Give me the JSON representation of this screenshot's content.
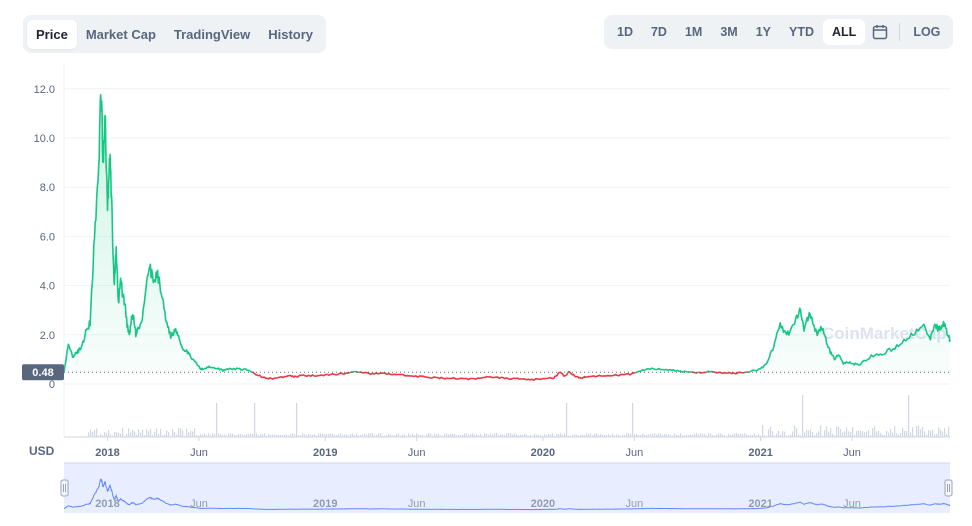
{
  "tabs": [
    {
      "label": "Price",
      "active": true
    },
    {
      "label": "Market Cap",
      "active": false
    },
    {
      "label": "TradingView",
      "active": false
    },
    {
      "label": "History",
      "active": false
    }
  ],
  "ranges": [
    {
      "label": "1D",
      "active": false
    },
    {
      "label": "7D",
      "active": false
    },
    {
      "label": "1M",
      "active": false
    },
    {
      "label": "3M",
      "active": false
    },
    {
      "label": "1Y",
      "active": false
    },
    {
      "label": "YTD",
      "active": false
    },
    {
      "label": "ALL",
      "active": true
    }
  ],
  "calendar_icon": "calendar-icon",
  "log_label": "LOG",
  "currency_label": "USD",
  "watermark": "CoinMarketCap",
  "colors": {
    "up": "#16c784",
    "down": "#ea3943",
    "navigator": "#6188ff",
    "volume": "#cfd6e4"
  },
  "chart_data": {
    "type": "line",
    "title": "",
    "xlabel": "",
    "ylabel": "",
    "yticks": [
      "12.0",
      "10.0",
      "8.0",
      "6.0",
      "4.0",
      "2.0",
      "0"
    ],
    "ylim": [
      0,
      12.5
    ],
    "grid": true,
    "reference_price": 0.48,
    "reference_label": "0.48",
    "xticks": [
      {
        "label": "2018",
        "t": 2018.0
      },
      {
        "label": "Jun",
        "t": 2018.42
      },
      {
        "label": "2019",
        "t": 2019.0
      },
      {
        "label": "Jun",
        "t": 2019.42
      },
      {
        "label": "2020",
        "t": 2020.0
      },
      {
        "label": "Jun",
        "t": 2020.42
      },
      {
        "label": "2021",
        "t": 2021.0
      },
      {
        "label": "Jun",
        "t": 2021.42
      }
    ],
    "x_range": [
      2017.8,
      2021.87
    ],
    "series": [
      {
        "x": [
          2017.8,
          2017.82,
          2017.84,
          2017.86,
          2017.88,
          2017.9,
          2017.92,
          2017.94,
          2017.96,
          2017.97,
          2017.98,
          2017.99,
          2018.0,
          2018.01,
          2018.02,
          2018.03,
          2018.04,
          2018.05,
          2018.06,
          2018.07,
          2018.08,
          2018.09,
          2018.1,
          2018.11,
          2018.12,
          2018.13,
          2018.15,
          2018.17,
          2018.19,
          2018.21,
          2018.23,
          2018.25,
          2018.27,
          2018.29,
          2018.31,
          2018.33,
          2018.35,
          2018.37,
          2018.39,
          2018.41,
          2018.43,
          2018.45,
          2018.47,
          2018.5,
          2018.53,
          2018.56,
          2018.6,
          2018.64,
          2018.68,
          2018.72,
          2018.76,
          2018.8,
          2018.84,
          2018.87,
          2018.9,
          2018.95,
          2019.0,
          2019.05,
          2019.1,
          2019.15,
          2019.2,
          2019.25,
          2019.3,
          2019.35,
          2019.4,
          2019.45,
          2019.5,
          2019.55,
          2019.6,
          2019.65,
          2019.7,
          2019.75,
          2019.8,
          2019.85,
          2019.9,
          2019.95,
          2020.0,
          2020.05,
          2020.08,
          2020.1,
          2020.12,
          2020.15,
          2020.18,
          2020.2,
          2020.25,
          2020.3,
          2020.35,
          2020.4,
          2020.45,
          2020.5,
          2020.55,
          2020.6,
          2020.65,
          2020.7,
          2020.75,
          2020.8,
          2020.85,
          2020.9,
          2020.95,
          2021.0,
          2021.03,
          2021.06,
          2021.09,
          2021.12,
          2021.15,
          2021.18,
          2021.2,
          2021.22,
          2021.24,
          2021.26,
          2021.28,
          2021.3,
          2021.32,
          2021.34,
          2021.36,
          2021.38,
          2021.4,
          2021.42,
          2021.45,
          2021.5,
          2021.55,
          2021.6,
          2021.65,
          2021.7,
          2021.75,
          2021.78,
          2021.8,
          2021.82,
          2021.84,
          2021.86,
          2021.87
        ],
        "values": [
          0.5,
          1.6,
          1.1,
          1.3,
          1.5,
          2.1,
          2.5,
          6.0,
          9.0,
          12.1,
          9.0,
          10.6,
          7.0,
          9.4,
          7.0,
          4.0,
          5.5,
          3.2,
          4.2,
          3.6,
          3.2,
          2.4,
          2.0,
          2.6,
          2.8,
          2.0,
          2.4,
          3.2,
          4.8,
          4.2,
          4.4,
          3.6,
          2.6,
          1.9,
          2.2,
          1.8,
          1.4,
          1.3,
          1.0,
          0.8,
          0.6,
          0.65,
          0.7,
          0.65,
          0.55,
          0.6,
          0.62,
          0.58,
          0.4,
          0.25,
          0.22,
          0.28,
          0.32,
          0.3,
          0.35,
          0.34,
          0.36,
          0.4,
          0.45,
          0.5,
          0.42,
          0.44,
          0.4,
          0.36,
          0.32,
          0.3,
          0.26,
          0.24,
          0.22,
          0.2,
          0.22,
          0.28,
          0.25,
          0.22,
          0.2,
          0.18,
          0.2,
          0.25,
          0.5,
          0.3,
          0.5,
          0.3,
          0.25,
          0.3,
          0.32,
          0.34,
          0.36,
          0.4,
          0.55,
          0.62,
          0.6,
          0.55,
          0.5,
          0.45,
          0.5,
          0.48,
          0.44,
          0.45,
          0.5,
          0.6,
          0.9,
          1.5,
          2.4,
          2.0,
          2.3,
          3.1,
          2.2,
          2.8,
          2.5,
          2.0,
          2.3,
          1.8,
          1.3,
          1.0,
          1.2,
          0.8,
          0.9,
          0.85,
          0.75,
          1.1,
          1.2,
          1.4,
          1.7,
          2.0,
          2.3,
          1.9,
          2.4,
          2.2,
          2.5,
          2.0,
          1.8
        ]
      }
    ],
    "volume_note": "volume bars shown beneath price"
  }
}
